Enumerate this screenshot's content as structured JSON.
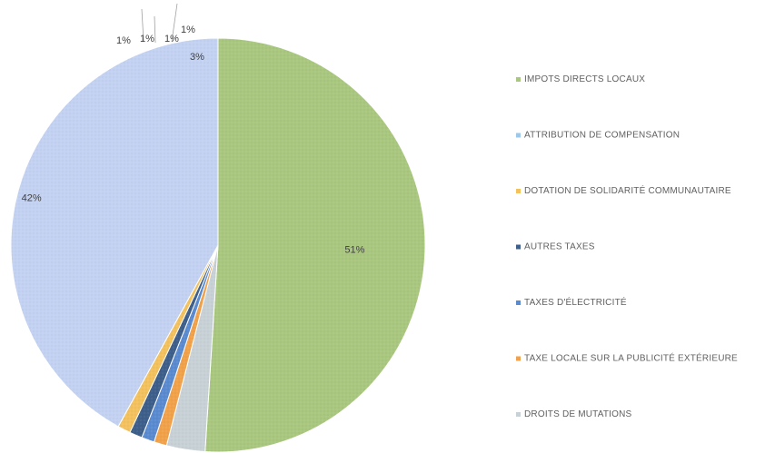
{
  "chart_data": {
    "type": "pie",
    "title": "",
    "slices": [
      {
        "label": "IMPOTS DIRECTS LOCAUX",
        "value": 51,
        "display": "51%",
        "color": "#a9c77f"
      },
      {
        "label": "DROITS DE MUTATIONS",
        "value": 3,
        "display": "3%",
        "color": "#c8d1d6"
      },
      {
        "label": "TAXE LOCALE SUR LA PUBLICITÉ EXTÉRIEURE",
        "value": 1,
        "display": "1%",
        "color": "#f0a14a"
      },
      {
        "label": "TAXES D'ÉLECTRICITÉ",
        "value": 1,
        "display": "1%",
        "color": "#5a8bd0"
      },
      {
        "label": "AUTRES TAXES",
        "value": 1,
        "display": "1%",
        "color": "#3d5f8a"
      },
      {
        "label": "DOTATION DE SOLIDARITÉ COMMUNAUTAIRE",
        "value": 1,
        "display": "1%",
        "color": "#f3c15e"
      },
      {
        "label": "ATTRIBUTION DE COMPENSATION",
        "value": 42,
        "display": "42%",
        "color": "#c3d2f2"
      }
    ],
    "legend": {
      "position": "right",
      "entries": [
        {
          "label": "IMPOTS DIRECTS LOCAUX",
          "color": "#a9c77f"
        },
        {
          "label": "ATTRIBUTION DE COMPENSATION",
          "color": "#9cc8ea"
        },
        {
          "label": "DOTATION DE SOLIDARITÉ COMMUNAUTAIRE",
          "color": "#f3c15e"
        },
        {
          "label": "AUTRES TAXES",
          "color": "#3d5f8a"
        },
        {
          "label": "TAXES D'ÉLECTRICITÉ",
          "color": "#5a8bd0"
        },
        {
          "label": "TAXE LOCALE SUR LA PUBLICITÉ EXTÉRIEURE",
          "color": "#f0a14a"
        },
        {
          "label": "DROITS DE MUTATIONS",
          "color": "#c8d1d6"
        }
      ]
    }
  }
}
